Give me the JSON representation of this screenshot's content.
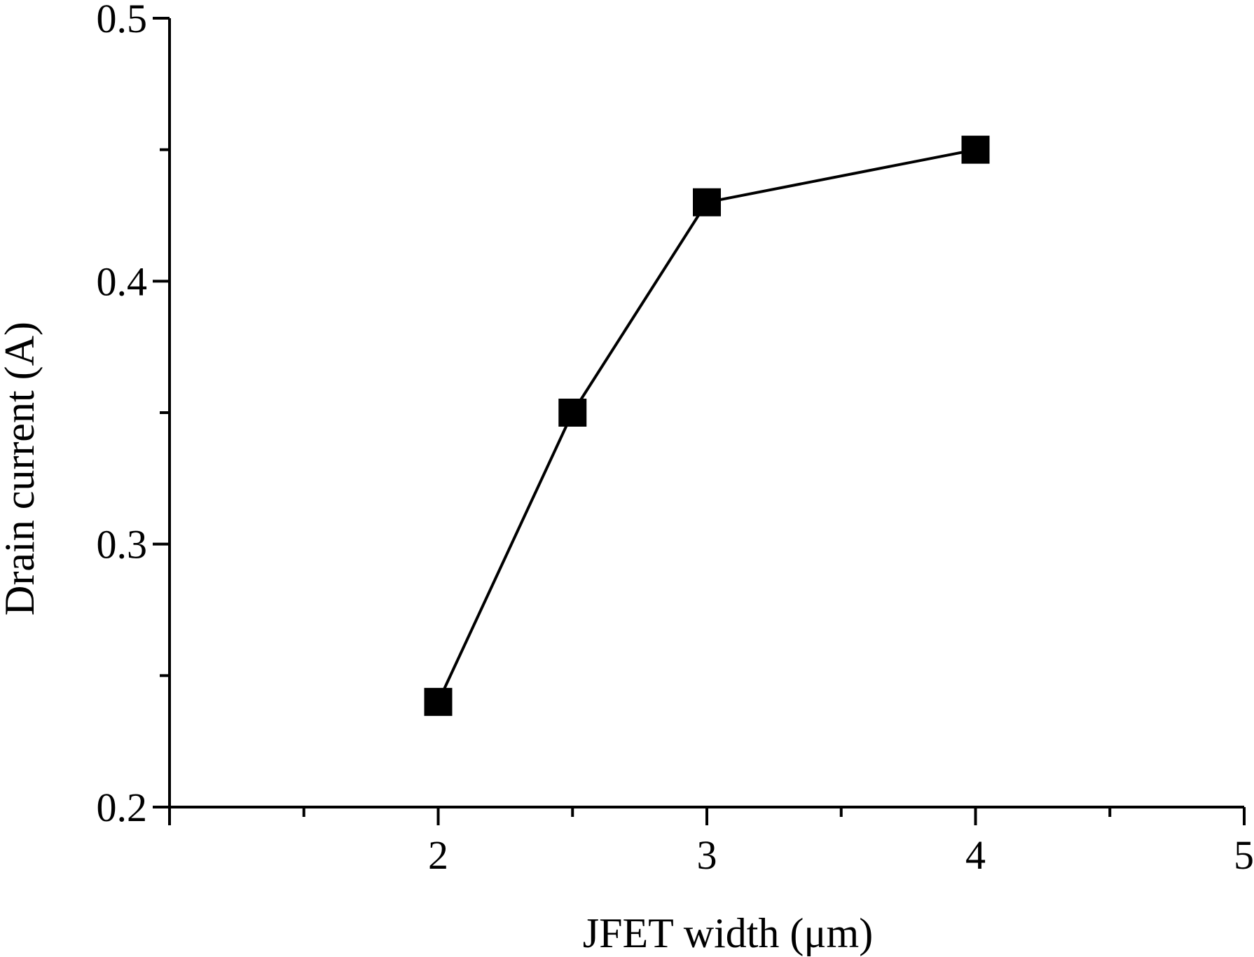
{
  "chart_data": {
    "type": "line",
    "title": "",
    "xlabel": "JFET width (μm)",
    "ylabel": "Drain current (A)",
    "xlim": [
      1,
      5
    ],
    "ylim": [
      0.2,
      0.5
    ],
    "x_ticks": [
      2,
      3,
      4,
      5
    ],
    "x_tick_labels": [
      "2",
      "3",
      "4",
      "5"
    ],
    "x_minor_step": 0.5,
    "y_ticks": [
      0.2,
      0.3,
      0.4,
      0.5
    ],
    "y_tick_labels": [
      "0.2",
      "0.3",
      "0.4",
      "0.5"
    ],
    "y_minor_step": 0.05,
    "grid": false,
    "legend": "none",
    "series": [
      {
        "x": [
          2,
          2.5,
          3,
          4
        ],
        "y": [
          0.24,
          0.35,
          0.43,
          0.45
        ],
        "marker": "square",
        "color": "#000000"
      }
    ]
  }
}
